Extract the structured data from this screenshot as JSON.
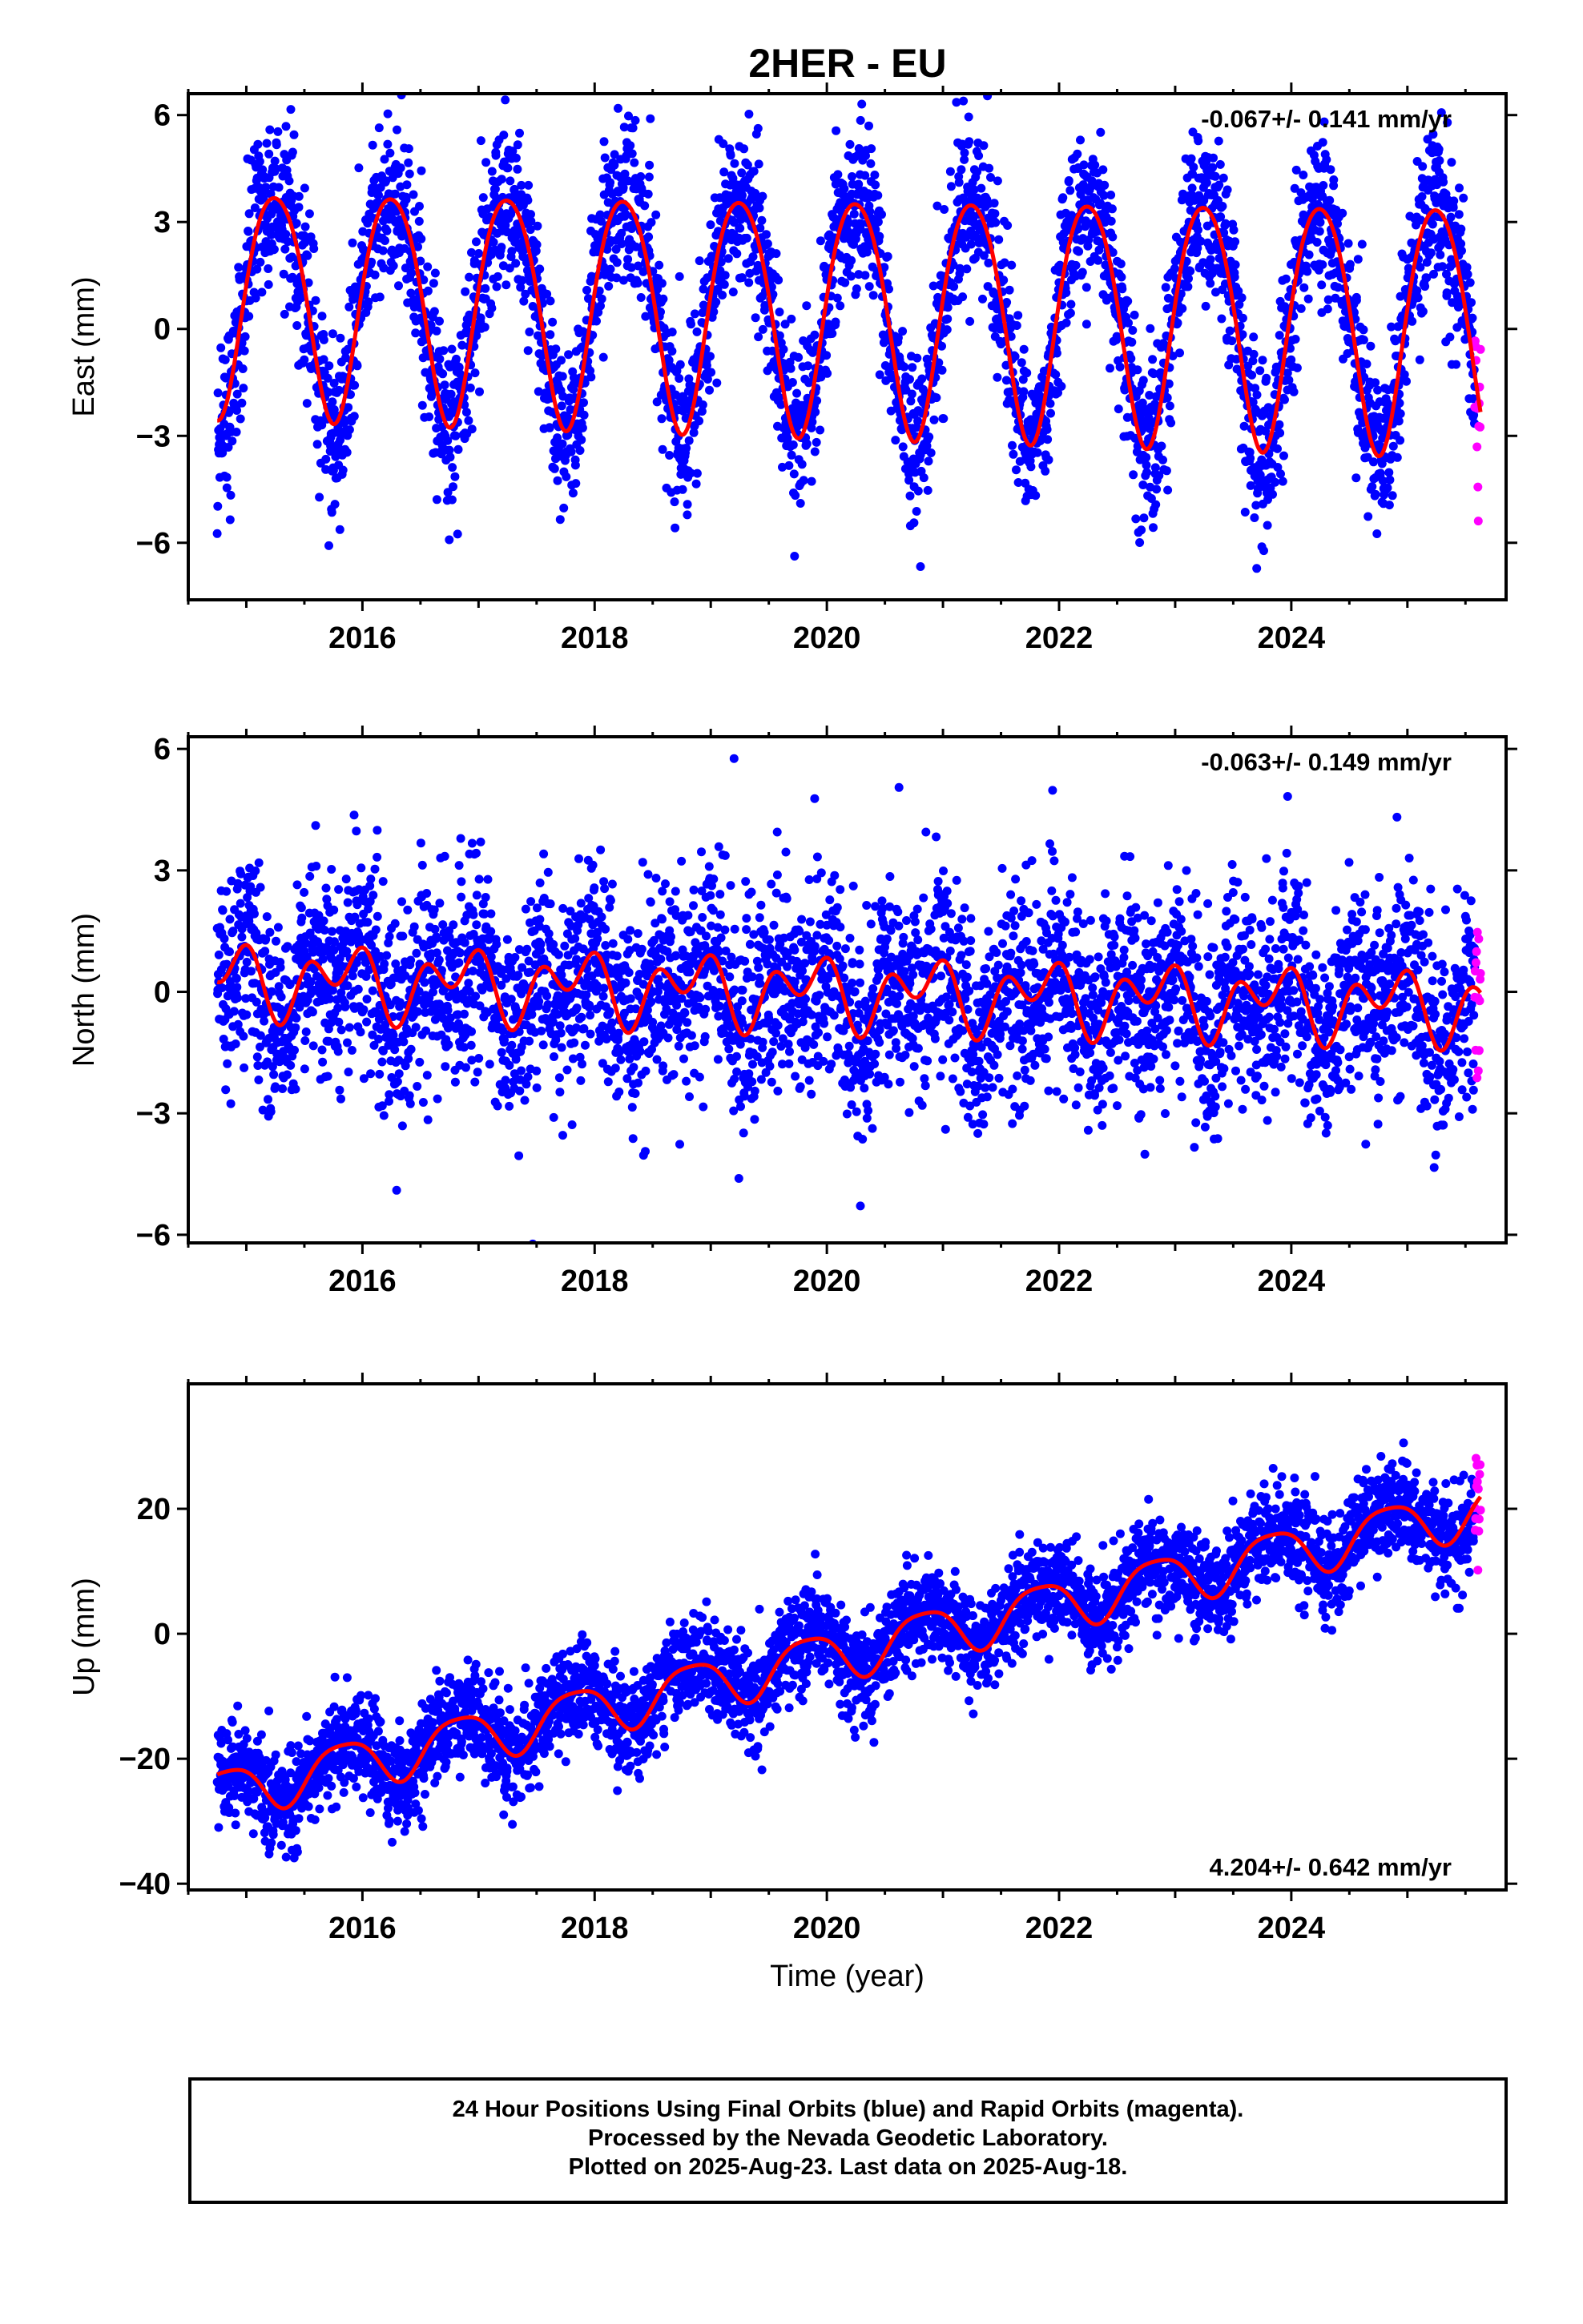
{
  "title": "2HER - EU",
  "colors": {
    "final": "#0000ff",
    "rapid": "#ff00ff",
    "model": "#ff0000",
    "axes": "#000000"
  },
  "caption": {
    "line1": "24 Hour Positions Using Final Orbits (blue) and Rapid Orbits (magenta).",
    "line2": "Processed by the Nevada Geodetic Laboratory.",
    "line3": "Plotted on 2025-Aug-23. Last data on 2025-Aug-18."
  },
  "chart_data": [
    {
      "type": "scatter",
      "component": "east",
      "ylabel": "East (mm)",
      "xlabel": "",
      "rate_label": "-0.067+/- 0.141 mm/yr",
      "rate_position": "top-right",
      "xlim": [
        2014.5,
        2025.85
      ],
      "ylim": [
        -7.6,
        6.6
      ],
      "x_ticks": [
        2016,
        2018,
        2020,
        2022,
        2024
      ],
      "y_ticks": [
        -6,
        -3,
        0,
        3,
        6
      ],
      "y_tick_labels": [
        "−6",
        "−3",
        "0",
        "3",
        "6"
      ],
      "x_range": [
        2014.75,
        2025.63
      ],
      "rapid_start": 2025.58,
      "model": {
        "offset": 0.55,
        "rate": -0.067,
        "ref_year": 2020.0,
        "annual_amp": 3.3,
        "annual_phase": 0.0,
        "semi_amp": 0.35,
        "semi_phase": 1.4,
        "amp_decay": 0.01
      },
      "noise_sd": 1.15,
      "series": [
        {
          "name": "Final Orbits (blue)",
          "color": "#0000ff",
          "n_points": 3900
        },
        {
          "name": "Rapid Orbits (magenta)",
          "color": "#ff00ff",
          "n_points": 14
        },
        {
          "name": "Model fit",
          "color": "#ff0000"
        }
      ]
    },
    {
      "type": "scatter",
      "component": "north",
      "ylabel": "North (mm)",
      "xlabel": "",
      "rate_label": "-0.063+/- 0.149 mm/yr",
      "rate_position": "top-right",
      "xlim": [
        2014.5,
        2025.85
      ],
      "ylim": [
        -6.2,
        6.3
      ],
      "x_ticks": [
        2016,
        2018,
        2020,
        2022,
        2024
      ],
      "y_ticks": [
        -6,
        -3,
        0,
        3,
        6
      ],
      "y_tick_labels": [
        "−6",
        "−3",
        "0",
        "3",
        "6"
      ],
      "x_range": [
        2014.75,
        2025.63
      ],
      "rapid_start": 2025.58,
      "model": {
        "offset": 0.0,
        "rate": -0.063,
        "ref_year": 2020.0,
        "annual_amp": 0.55,
        "annual_phase": 2.6,
        "semi_amp": 0.6,
        "semi_phase": 1.2,
        "amp_decay": 0.0
      },
      "noise_sd": 1.25,
      "series": [
        {
          "name": "Final Orbits (blue)",
          "color": "#0000ff",
          "n_points": 3900
        },
        {
          "name": "Rapid Orbits (magenta)",
          "color": "#ff00ff",
          "n_points": 14
        },
        {
          "name": "Model fit",
          "color": "#ff0000"
        }
      ]
    },
    {
      "type": "scatter",
      "component": "up",
      "ylabel": "Up (mm)",
      "xlabel": "Time (year)",
      "rate_label": "4.204+/- 0.642 mm/yr",
      "rate_position": "bottom-right",
      "xlim": [
        2014.5,
        2025.85
      ],
      "ylim": [
        -41,
        40
      ],
      "x_ticks": [
        2016,
        2018,
        2020,
        2022,
        2024
      ],
      "y_ticks": [
        -40,
        -20,
        0,
        20
      ],
      "y_tick_labels": [
        "−40",
        "−20",
        "0",
        "20"
      ],
      "x_range": [
        2014.75,
        2025.63
      ],
      "rapid_start": 2025.58,
      "model": {
        "offset": -3.5,
        "rate": 4.204,
        "ref_year": 2020.0,
        "annual_amp": 4.0,
        "annual_phase": 2.6,
        "semi_amp": 0.8,
        "semi_phase": 0.5,
        "amp_decay": 0.0
      },
      "noise_sd": 4.0,
      "series": [
        {
          "name": "Final Orbits (blue)",
          "color": "#0000ff",
          "n_points": 3900
        },
        {
          "name": "Rapid Orbits (magenta)",
          "color": "#ff00ff",
          "n_points": 14
        },
        {
          "name": "Model fit",
          "color": "#ff0000"
        }
      ]
    }
  ]
}
